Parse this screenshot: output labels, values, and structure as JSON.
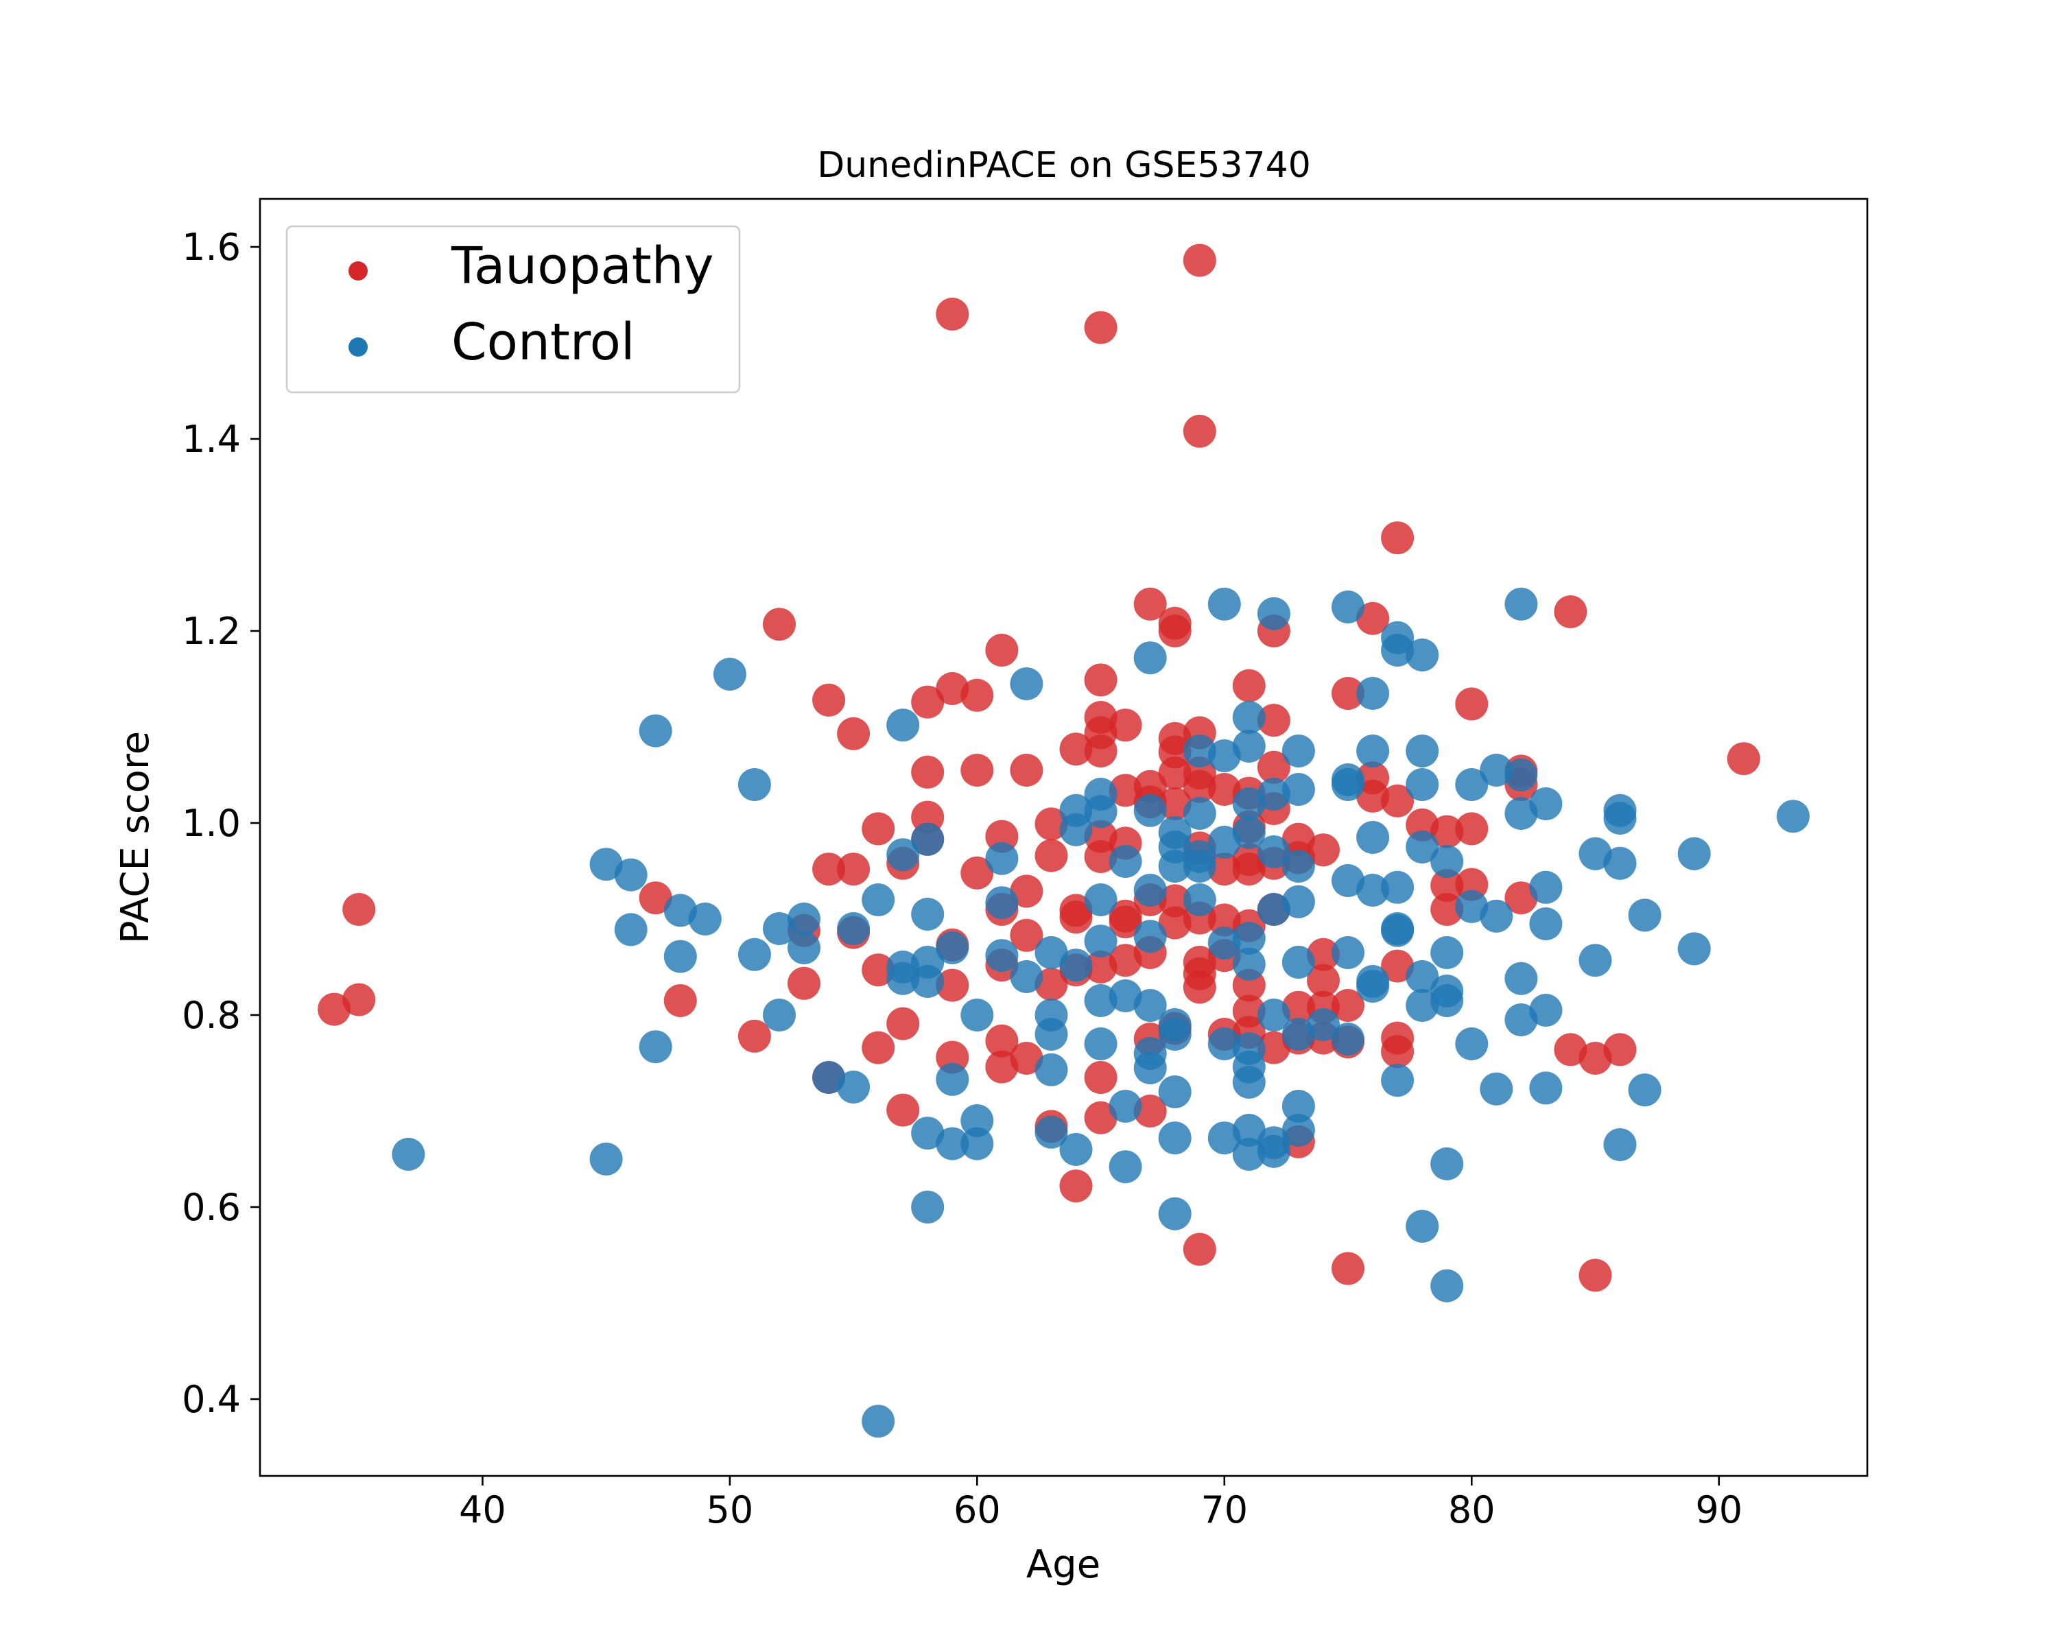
{
  "chart_data": {
    "type": "scatter",
    "title": "DunedinPACE on GSE53740",
    "xlabel": "Age",
    "ylabel": "PACE score",
    "xlim": [
      31,
      96
    ],
    "ylim": [
      0.32,
      1.65
    ],
    "xticks": [
      40,
      50,
      60,
      70,
      80,
      90
    ],
    "yticks": [
      0.4,
      0.6,
      0.8,
      1.0,
      1.2,
      1.4,
      1.6
    ],
    "grid": false,
    "legend": "top-left",
    "series": [
      {
        "name": "Tauopathy",
        "color": "#d62728",
        "points": [
          [
            34,
            0.806
          ],
          [
            35,
            0.91
          ],
          [
            35,
            0.816
          ],
          [
            47,
            0.922
          ],
          [
            48,
            0.815
          ],
          [
            51,
            0.778
          ],
          [
            52,
            1.207
          ],
          [
            53,
            0.888
          ],
          [
            53,
            0.833
          ],
          [
            54,
            1.128
          ],
          [
            54,
            0.952
          ],
          [
            54,
            0.735
          ],
          [
            55,
            1.093
          ],
          [
            55,
            0.952
          ],
          [
            55,
            0.886
          ],
          [
            56,
            0.994
          ],
          [
            56,
            0.847
          ],
          [
            56,
            0.766
          ],
          [
            57,
            0.958
          ],
          [
            57,
            0.791
          ],
          [
            57,
            0.701
          ],
          [
            58,
            1.126
          ],
          [
            58,
            1.053
          ],
          [
            58,
            1.006
          ],
          [
            58,
            0.983
          ],
          [
            59,
            1.53
          ],
          [
            59,
            1.14
          ],
          [
            59,
            0.873
          ],
          [
            59,
            0.831
          ],
          [
            59,
            0.756
          ],
          [
            60,
            1.133
          ],
          [
            60,
            1.055
          ],
          [
            60,
            0.948
          ],
          [
            61,
            1.18
          ],
          [
            61,
            0.986
          ],
          [
            61,
            0.91
          ],
          [
            61,
            0.852
          ],
          [
            61,
            0.773
          ],
          [
            61,
            0.746
          ],
          [
            62,
            1.055
          ],
          [
            62,
            0.929
          ],
          [
            62,
            0.883
          ],
          [
            62,
            0.755
          ],
          [
            63,
            0.999
          ],
          [
            63,
            0.966
          ],
          [
            63,
            0.832
          ],
          [
            63,
            0.684
          ],
          [
            64,
            1.077
          ],
          [
            64,
            0.909
          ],
          [
            64,
            0.902
          ],
          [
            64,
            0.847
          ],
          [
            64,
            0.622
          ],
          [
            65,
            1.516
          ],
          [
            65,
            1.149
          ],
          [
            65,
            1.11
          ],
          [
            65,
            1.094
          ],
          [
            65,
            1.075
          ],
          [
            65,
            0.986
          ],
          [
            65,
            0.965
          ],
          [
            65,
            0.85
          ],
          [
            65,
            0.735
          ],
          [
            65,
            0.693
          ],
          [
            66,
            1.102
          ],
          [
            66,
            1.034
          ],
          [
            66,
            0.979
          ],
          [
            66,
            0.903
          ],
          [
            66,
            0.897
          ],
          [
            66,
            0.857
          ],
          [
            67,
            1.228
          ],
          [
            67,
            1.038
          ],
          [
            67,
            1.022
          ],
          [
            67,
            0.92
          ],
          [
            67,
            0.865
          ],
          [
            67,
            0.775
          ],
          [
            67,
            0.7
          ],
          [
            68,
            1.208
          ],
          [
            68,
            1.2
          ],
          [
            68,
            1.088
          ],
          [
            68,
            1.074
          ],
          [
            68,
            1.052
          ],
          [
            68,
            1.02
          ],
          [
            68,
            0.919
          ],
          [
            68,
            0.896
          ],
          [
            68,
            0.786
          ],
          [
            69,
            1.586
          ],
          [
            69,
            1.408
          ],
          [
            69,
            1.094
          ],
          [
            69,
            1.052
          ],
          [
            69,
            1.038
          ],
          [
            69,
            0.974
          ],
          [
            69,
            0.901
          ],
          [
            69,
            0.855
          ],
          [
            69,
            0.843
          ],
          [
            69,
            0.829
          ],
          [
            69,
            0.556
          ],
          [
            70,
            1.035
          ],
          [
            70,
            0.952
          ],
          [
            70,
            0.899
          ],
          [
            70,
            0.862
          ],
          [
            70,
            0.78
          ],
          [
            71,
            1.143
          ],
          [
            71,
            1.031
          ],
          [
            71,
            0.996
          ],
          [
            71,
            0.962
          ],
          [
            71,
            0.952
          ],
          [
            71,
            0.893
          ],
          [
            71,
            0.831
          ],
          [
            71,
            0.804
          ],
          [
            71,
            0.782
          ],
          [
            72,
            1.2
          ],
          [
            72,
            1.107
          ],
          [
            72,
            1.058
          ],
          [
            72,
            1.015
          ],
          [
            72,
            0.958
          ],
          [
            72,
            0.91
          ],
          [
            72,
            0.766
          ],
          [
            73,
            0.983
          ],
          [
            73,
            0.964
          ],
          [
            73,
            0.808
          ],
          [
            73,
            0.776
          ],
          [
            73,
            0.668
          ],
          [
            74,
            0.972
          ],
          [
            74,
            0.863
          ],
          [
            74,
            0.836
          ],
          [
            74,
            0.808
          ],
          [
            74,
            0.776
          ],
          [
            75,
            1.135
          ],
          [
            75,
            0.81
          ],
          [
            75,
            0.772
          ],
          [
            75,
            0.536
          ],
          [
            76,
            1.213
          ],
          [
            76,
            1.028
          ],
          [
            76,
            1.047
          ],
          [
            77,
            1.297
          ],
          [
            77,
            1.023
          ],
          [
            77,
            0.851
          ],
          [
            77,
            0.776
          ],
          [
            77,
            0.762
          ],
          [
            78,
            0.998
          ],
          [
            79,
            0.991
          ],
          [
            79,
            0.935
          ],
          [
            79,
            0.91
          ],
          [
            80,
            1.124
          ],
          [
            80,
            0.994
          ],
          [
            80,
            0.936
          ],
          [
            82,
            1.054
          ],
          [
            82,
            1.04
          ],
          [
            82,
            0.922
          ],
          [
            84,
            1.22
          ],
          [
            84,
            0.764
          ],
          [
            85,
            0.755
          ],
          [
            85,
            0.529
          ],
          [
            86,
            0.764
          ],
          [
            91,
            1.067
          ]
        ]
      },
      {
        "name": "Control",
        "color": "#1f77b4",
        "points": [
          [
            37,
            0.655
          ],
          [
            45,
            0.957
          ],
          [
            45,
            0.65
          ],
          [
            46,
            0.946
          ],
          [
            46,
            0.889
          ],
          [
            47,
            1.096
          ],
          [
            47,
            0.767
          ],
          [
            48,
            0.909
          ],
          [
            48,
            0.861
          ],
          [
            49,
            0.9
          ],
          [
            50,
            1.155
          ],
          [
            51,
            1.04
          ],
          [
            51,
            0.863
          ],
          [
            52,
            0.89
          ],
          [
            52,
            0.8
          ],
          [
            53,
            0.9
          ],
          [
            53,
            0.87
          ],
          [
            54,
            0.735
          ],
          [
            55,
            0.89
          ],
          [
            55,
            0.725
          ],
          [
            56,
            0.92
          ],
          [
            56,
            0.377
          ],
          [
            57,
            1.102
          ],
          [
            57,
            0.967
          ],
          [
            57,
            0.85
          ],
          [
            57,
            0.838
          ],
          [
            58,
            0.983
          ],
          [
            58,
            0.905
          ],
          [
            58,
            0.855
          ],
          [
            58,
            0.835
          ],
          [
            58,
            0.677
          ],
          [
            58,
            0.6
          ],
          [
            59,
            0.87
          ],
          [
            59,
            0.733
          ],
          [
            59,
            0.666
          ],
          [
            60,
            0.8
          ],
          [
            60,
            0.69
          ],
          [
            60,
            0.666
          ],
          [
            61,
            0.963
          ],
          [
            61,
            0.917
          ],
          [
            61,
            0.862
          ],
          [
            62,
            1.145
          ],
          [
            62,
            0.84
          ],
          [
            63,
            0.865
          ],
          [
            63,
            0.8
          ],
          [
            63,
            0.78
          ],
          [
            63,
            0.743
          ],
          [
            63,
            0.678
          ],
          [
            64,
            1.013
          ],
          [
            64,
            0.993
          ],
          [
            64,
            0.852
          ],
          [
            64,
            0.66
          ],
          [
            65,
            1.03
          ],
          [
            65,
            1.012
          ],
          [
            65,
            0.92
          ],
          [
            65,
            0.877
          ],
          [
            65,
            0.815
          ],
          [
            65,
            0.77
          ],
          [
            66,
            0.96
          ],
          [
            66,
            0.82
          ],
          [
            66,
            0.705
          ],
          [
            66,
            0.642
          ],
          [
            67,
            1.172
          ],
          [
            67,
            1.013
          ],
          [
            67,
            0.93
          ],
          [
            67,
            0.882
          ],
          [
            67,
            0.81
          ],
          [
            67,
            0.76
          ],
          [
            67,
            0.745
          ],
          [
            68,
            0.99
          ],
          [
            68,
            0.975
          ],
          [
            68,
            0.955
          ],
          [
            68,
            0.79
          ],
          [
            68,
            0.78
          ],
          [
            68,
            0.72
          ],
          [
            68,
            0.672
          ],
          [
            68,
            0.593
          ],
          [
            69,
            1.075
          ],
          [
            69,
            1.01
          ],
          [
            69,
            0.965
          ],
          [
            69,
            0.955
          ],
          [
            69,
            0.92
          ],
          [
            70,
            1.228
          ],
          [
            70,
            1.07
          ],
          [
            70,
            0.98
          ],
          [
            70,
            0.875
          ],
          [
            70,
            0.77
          ],
          [
            70,
            0.672
          ],
          [
            71,
            1.11
          ],
          [
            71,
            1.08
          ],
          [
            71,
            1.02
          ],
          [
            71,
            0.99
          ],
          [
            71,
            0.88
          ],
          [
            71,
            0.853
          ],
          [
            71,
            0.765
          ],
          [
            71,
            0.746
          ],
          [
            71,
            0.73
          ],
          [
            71,
            0.68
          ],
          [
            71,
            0.655
          ],
          [
            72,
            1.218
          ],
          [
            72,
            1.03
          ],
          [
            72,
            0.97
          ],
          [
            72,
            0.91
          ],
          [
            72,
            0.8
          ],
          [
            72,
            0.667
          ],
          [
            72,
            0.658
          ],
          [
            73,
            1.075
          ],
          [
            73,
            1.035
          ],
          [
            73,
            0.955
          ],
          [
            73,
            0.918
          ],
          [
            73,
            0.855
          ],
          [
            73,
            0.78
          ],
          [
            73,
            0.705
          ],
          [
            73,
            0.68
          ],
          [
            74,
            0.79
          ],
          [
            75,
            1.225
          ],
          [
            75,
            1.045
          ],
          [
            75,
            1.04
          ],
          [
            75,
            0.94
          ],
          [
            75,
            0.865
          ],
          [
            75,
            0.775
          ],
          [
            76,
            1.135
          ],
          [
            76,
            1.075
          ],
          [
            76,
            0.985
          ],
          [
            76,
            0.93
          ],
          [
            76,
            0.835
          ],
          [
            76,
            0.83
          ],
          [
            77,
            1.193
          ],
          [
            77,
            1.18
          ],
          [
            77,
            0.933
          ],
          [
            77,
            0.89
          ],
          [
            77,
            0.888
          ],
          [
            77,
            0.732
          ],
          [
            78,
            1.175
          ],
          [
            78,
            1.075
          ],
          [
            78,
            1.04
          ],
          [
            78,
            0.975
          ],
          [
            78,
            0.84
          ],
          [
            78,
            0.81
          ],
          [
            78,
            0.58
          ],
          [
            79,
            0.96
          ],
          [
            79,
            0.865
          ],
          [
            79,
            0.825
          ],
          [
            79,
            0.815
          ],
          [
            79,
            0.645
          ],
          [
            79,
            0.518
          ],
          [
            80,
            1.04
          ],
          [
            80,
            0.913
          ],
          [
            80,
            0.77
          ],
          [
            81,
            1.055
          ],
          [
            81,
            0.903
          ],
          [
            81,
            0.723
          ],
          [
            82,
            1.228
          ],
          [
            82,
            1.05
          ],
          [
            82,
            1.01
          ],
          [
            82,
            0.838
          ],
          [
            82,
            0.795
          ],
          [
            83,
            1.02
          ],
          [
            83,
            0.933
          ],
          [
            83,
            0.895
          ],
          [
            83,
            0.805
          ],
          [
            83,
            0.724
          ],
          [
            85,
            0.968
          ],
          [
            85,
            0.857
          ],
          [
            86,
            1.013
          ],
          [
            86,
            1.005
          ],
          [
            86,
            0.958
          ],
          [
            86,
            0.665
          ],
          [
            87,
            0.904
          ],
          [
            87,
            0.722
          ],
          [
            89,
            0.968
          ],
          [
            89,
            0.869
          ],
          [
            93,
            1.007
          ]
        ]
      }
    ]
  }
}
